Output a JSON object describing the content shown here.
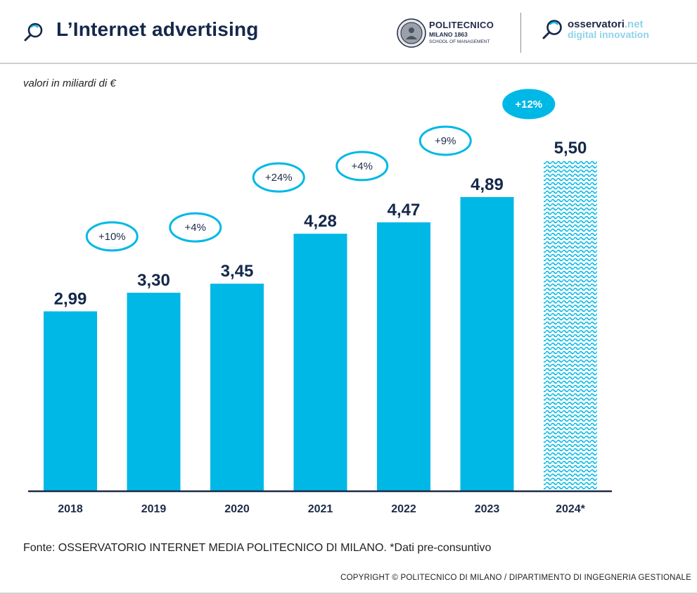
{
  "header": {
    "title": "L’Internet advertising",
    "polimi": {
      "line1": "POLITECNICO",
      "line2": "MILANO 1863",
      "line3": "SCHOOL OF MANAGEMENT"
    },
    "osservatori": {
      "line1_main": "osservatori",
      "line1_suffix": ".net",
      "line2": "digital innovation"
    }
  },
  "units_label": "valori in miliardi di €",
  "chart_data": {
    "type": "bar",
    "categories": [
      "2018",
      "2019",
      "2020",
      "2021",
      "2022",
      "2023",
      "2024*"
    ],
    "values": [
      2.99,
      3.3,
      3.45,
      4.28,
      4.47,
      4.89,
      5.5
    ],
    "value_labels": [
      "2,99",
      "3,30",
      "3,45",
      "4,28",
      "4,47",
      "4,89",
      "5,50"
    ],
    "growth_labels": [
      "+10%",
      "+4%",
      "+24%",
      "+4%",
      "+9%",
      "+12%"
    ],
    "highlight_growth_index": 5,
    "pattern_bar_index": 6,
    "bar_color": "#00b8e6",
    "label_color": "#14284b",
    "ylim": [
      0,
      6.2
    ],
    "grid": false
  },
  "source": "Fonte:  OSSERVATORIO INTERNET MEDIA POLITECNICO DI MILANO. *Dati pre-consuntivo",
  "copyright": "COPYRIGHT © POLITECNICO DI MILANO / DIPARTIMENTO DI INGEGNERIA GESTIONALE"
}
